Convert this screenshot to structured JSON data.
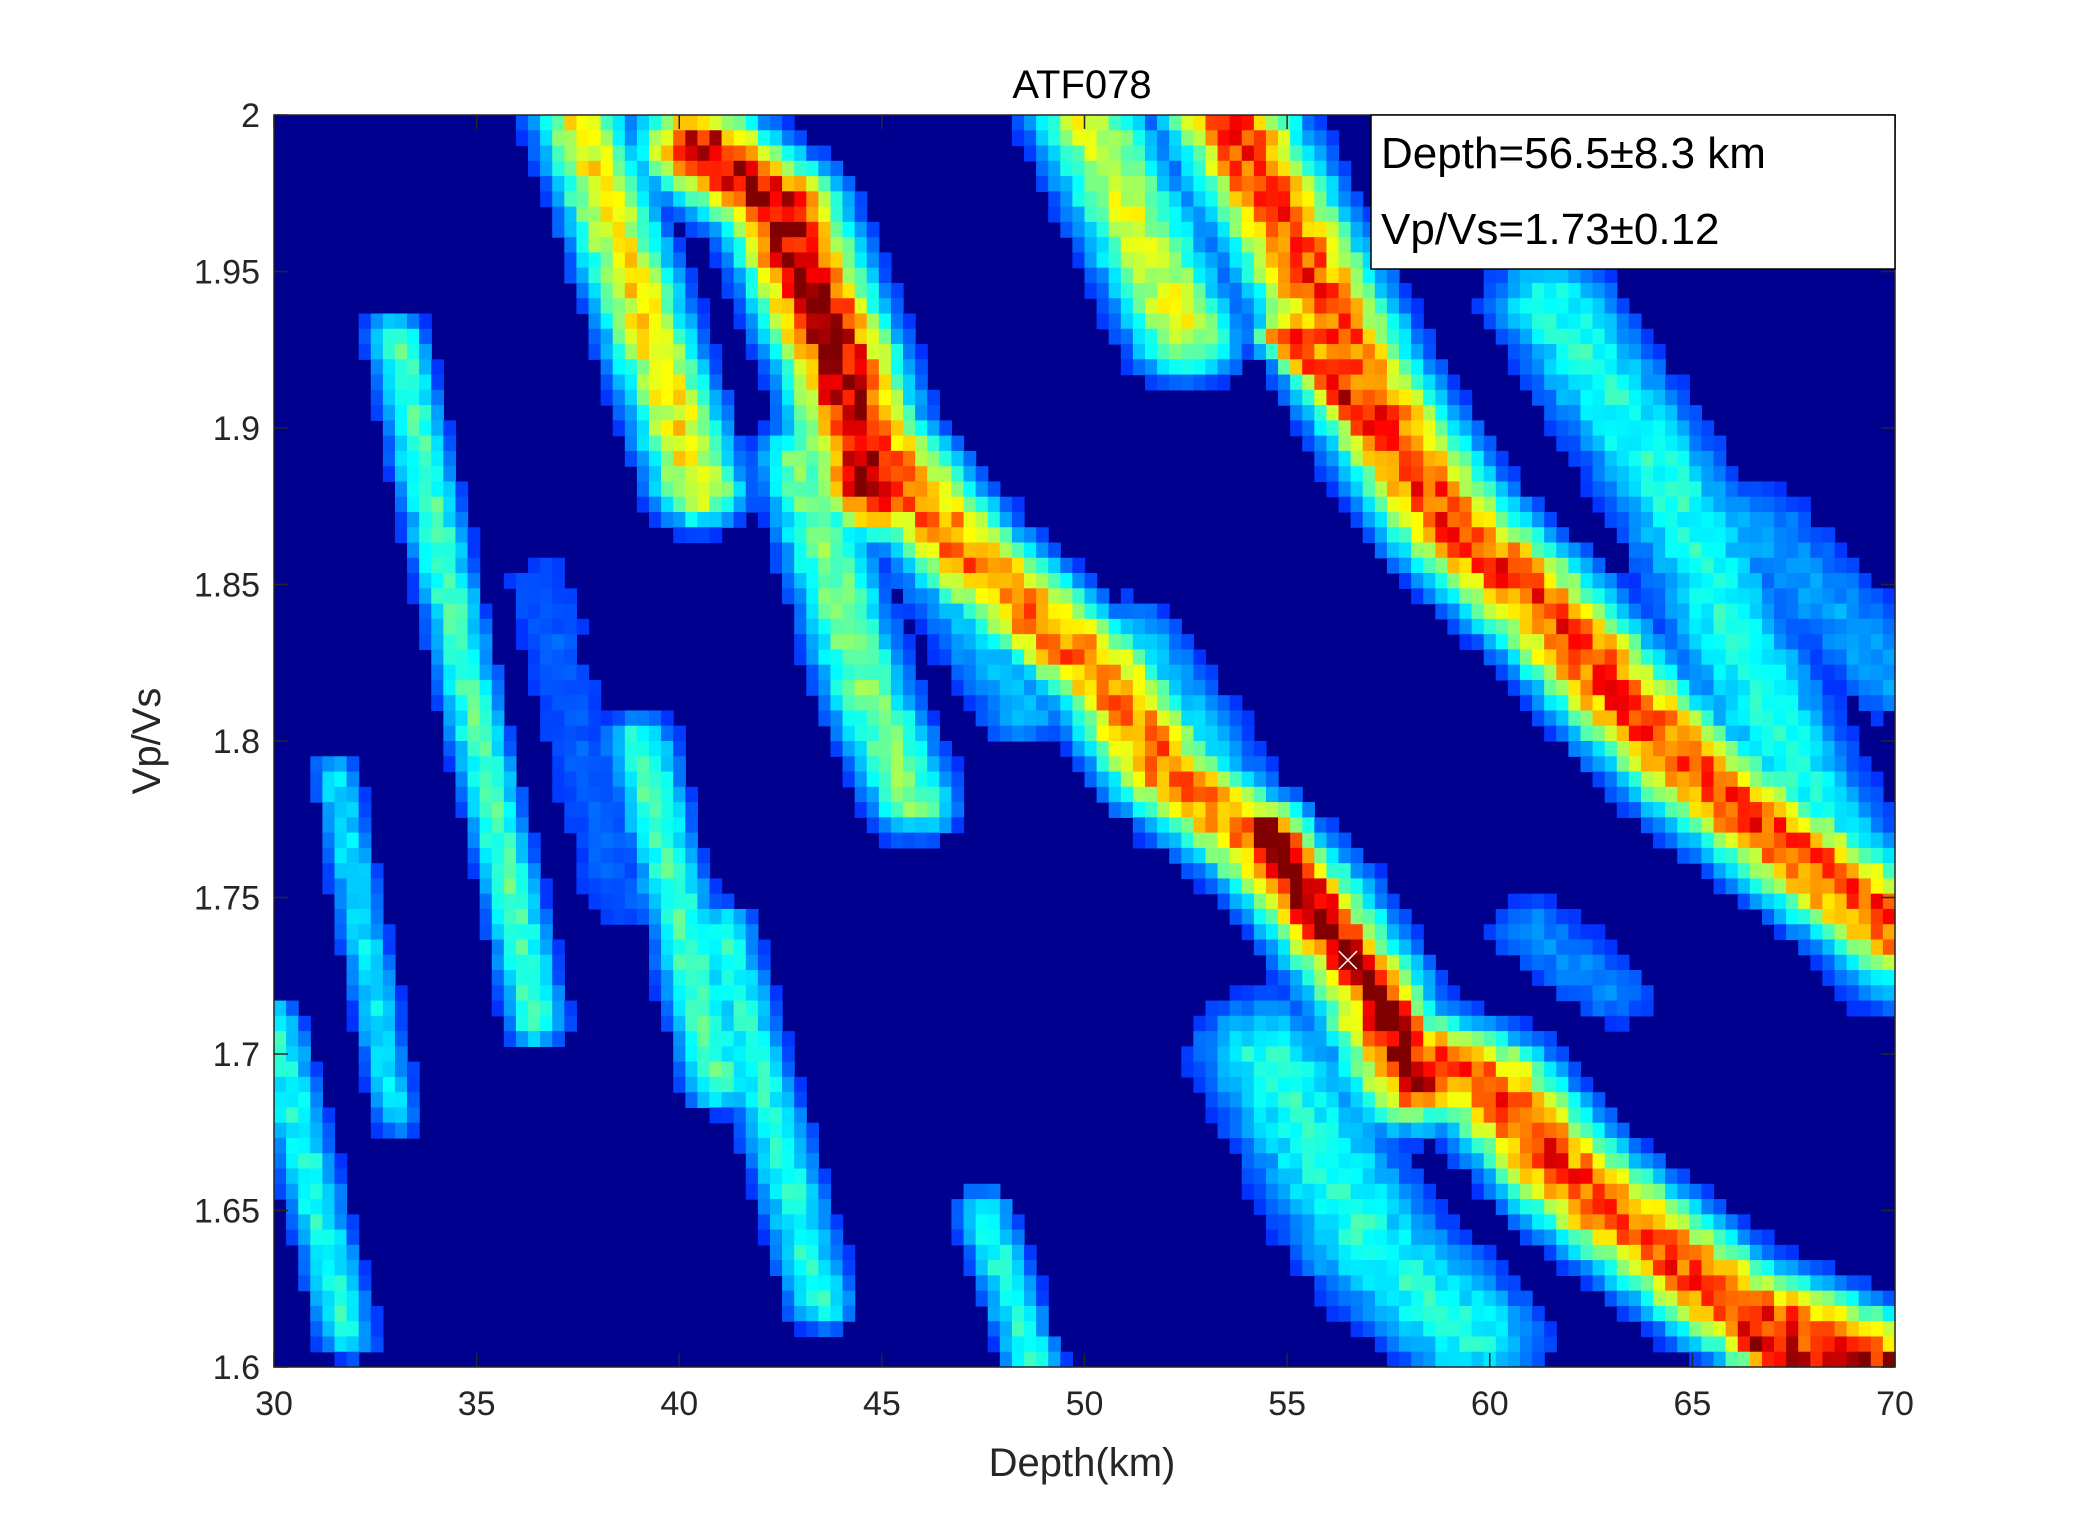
{
  "chart_data": {
    "type": "heatmap",
    "title": "ATF078",
    "xlabel": "Depth(km)",
    "ylabel": "Vp/Vs",
    "xlim": [
      30,
      70
    ],
    "ylim": [
      1.6,
      2.0
    ],
    "xticks": [
      30,
      35,
      40,
      45,
      50,
      55,
      60,
      65,
      70
    ],
    "xtick_labels": [
      "30",
      "35",
      "40",
      "45",
      "50",
      "55",
      "60",
      "65",
      "70"
    ],
    "yticks": [
      1.6,
      1.65,
      1.7,
      1.75,
      1.8,
      1.85,
      1.9,
      1.95,
      2.0
    ],
    "ytick_labels": [
      "1.6",
      "1.65",
      "1.7",
      "1.75",
      "1.8",
      "1.85",
      "1.9",
      "1.95",
      "2"
    ],
    "colormap": "jet",
    "background_color": "#00008f",
    "annotations": [
      "Depth=56.5±8.3 km",
      "Vp/Vs=1.73±0.12"
    ],
    "annotation_box_position": "top-right",
    "best_fit_marker": {
      "x": 56.5,
      "y": 1.73,
      "symbol": "×"
    },
    "ridges": [
      {
        "points": [
          [
            30.0,
            1.71
          ],
          [
            31.8,
            1.61
          ]
        ],
        "amplitude": 0.35,
        "width": 0.12
      },
      {
        "points": [
          [
            31.5,
            1.79
          ],
          [
            33.0,
            1.68
          ]
        ],
        "amplitude": 0.3,
        "width": 0.1
      },
      {
        "points": [
          [
            33.0,
            1.93
          ],
          [
            36.5,
            1.71
          ]
        ],
        "amplitude": 0.4,
        "width": 0.12
      },
      {
        "points": [
          [
            36.5,
            1.85
          ],
          [
            38.5,
            1.75
          ]
        ],
        "amplitude": 0.15,
        "width": 0.2
      },
      {
        "points": [
          [
            37.5,
            2.0
          ],
          [
            40.5,
            1.88
          ]
        ],
        "amplitude": 0.6,
        "width": 0.18
      },
      {
        "points": [
          [
            39.0,
            1.8
          ],
          [
            41.0,
            1.69
          ]
        ],
        "amplitude": 0.4,
        "width": 0.14
      },
      {
        "points": [
          [
            41.0,
            1.74
          ],
          [
            43.5,
            1.62
          ]
        ],
        "amplitude": 0.35,
        "width": 0.14
      },
      {
        "points": [
          [
            40.5,
            1.99
          ],
          [
            42.5,
            1.97
          ],
          [
            44.0,
            1.92
          ],
          [
            44.8,
            1.88
          ]
        ],
        "amplitude": 0.95,
        "width": 0.22
      },
      {
        "points": [
          [
            43.0,
            1.89
          ],
          [
            44.5,
            1.82
          ],
          [
            45.8,
            1.78
          ]
        ],
        "amplitude": 0.45,
        "width": 0.18
      },
      {
        "points": [
          [
            44.5,
            1.9
          ],
          [
            47.0,
            1.86
          ],
          [
            50.5,
            1.82
          ],
          [
            52.0,
            1.79
          ],
          [
            54.0,
            1.77
          ],
          [
            55.5,
            1.75
          ],
          [
            57.0,
            1.72
          ],
          [
            58.0,
            1.69
          ]
        ],
        "amplitude": 0.75,
        "width": 0.22
      },
      {
        "points": [
          [
            54.5,
            1.77
          ],
          [
            56.0,
            1.74
          ],
          [
            57.2,
            1.72
          ],
          [
            58.2,
            1.69
          ]
        ],
        "amplitude": 1.0,
        "width": 0.16
      },
      {
        "points": [
          [
            54.5,
            1.7
          ],
          [
            57.0,
            1.64
          ],
          [
            59.5,
            1.61
          ]
        ],
        "amplitude": 0.35,
        "width": 0.3
      },
      {
        "points": [
          [
            58.0,
            1.7
          ],
          [
            60.0,
            1.69
          ],
          [
            62.0,
            1.66
          ],
          [
            64.0,
            1.64
          ],
          [
            66.0,
            1.62
          ],
          [
            68.0,
            1.61
          ],
          [
            70.0,
            1.6
          ]
        ],
        "amplitude": 0.8,
        "width": 0.24
      },
      {
        "points": [
          [
            66.5,
            1.61
          ],
          [
            68.0,
            1.6
          ],
          [
            70.0,
            1.6
          ]
        ],
        "amplitude": 0.95,
        "width": 0.15
      },
      {
        "points": [
          [
            51.0,
            1.83
          ],
          [
            53.0,
            1.79
          ]
        ],
        "amplitude": 0.3,
        "width": 0.25
      },
      {
        "points": [
          [
            50.0,
            2.0
          ],
          [
            52.5,
            1.93
          ]
        ],
        "amplitude": 0.55,
        "width": 0.22
      },
      {
        "points": [
          [
            53.5,
            2.0
          ],
          [
            55.5,
            1.95
          ],
          [
            57.0,
            1.91
          ],
          [
            59.0,
            1.87
          ],
          [
            61.5,
            1.84
          ],
          [
            63.5,
            1.81
          ],
          [
            65.0,
            1.79
          ],
          [
            67.0,
            1.77
          ],
          [
            70.0,
            1.74
          ]
        ],
        "amplitude": 0.8,
        "width": 0.24
      },
      {
        "points": [
          [
            55.0,
            1.93
          ],
          [
            56.5,
            1.91
          ],
          [
            57.0,
            1.9
          ]
        ],
        "amplitude": 0.9,
        "width": 0.12
      },
      {
        "points": [
          [
            61.5,
            1.94
          ],
          [
            64.5,
            1.88
          ],
          [
            67.5,
            1.79
          ],
          [
            70.0,
            1.73
          ]
        ],
        "amplitude": 0.35,
        "width": 0.26
      },
      {
        "points": [
          [
            66.5,
            1.87
          ],
          [
            70.0,
            1.82
          ]
        ],
        "amplitude": 0.22,
        "width": 0.25
      },
      {
        "points": [
          [
            47.5,
            1.65
          ],
          [
            49.0,
            1.59
          ]
        ],
        "amplitude": 0.35,
        "width": 0.12
      },
      {
        "points": [
          [
            46.0,
            1.86
          ],
          [
            48.5,
            1.81
          ]
        ],
        "amplitude": 0.25,
        "width": 0.2
      },
      {
        "points": [
          [
            61.0,
            1.74
          ],
          [
            63.0,
            1.72
          ]
        ],
        "amplitude": 0.2,
        "width": 0.2
      }
    ]
  }
}
